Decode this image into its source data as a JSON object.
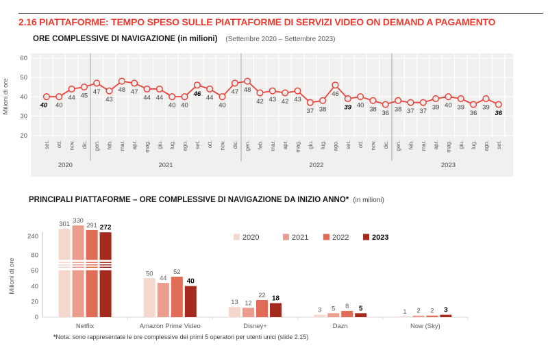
{
  "page": {
    "title": "2.16 PIATTAFORME: TEMPO SPESO SULLE PIATTAFORME DI SERVIZI VIDEO ON DEMAND A PAGAMENTO",
    "title_color": "#ed3a2d",
    "footnote_marker": "*",
    "footnote_text": "Nota: sono rappresentate le ore complessive dei primi 5 operatori per utenti unici (slide 2.15)"
  },
  "chart_data": [
    {
      "type": "line",
      "title": "ORE COMPLESSIVE DI NAVIGAZIONE (in milioni)",
      "period": "(Settembre 2020 – Settembre 2023)",
      "ylabel": "Milioni di ore",
      "ylim": [
        20,
        60
      ],
      "yticks": [
        20,
        30,
        40,
        50,
        60
      ],
      "line_color": "#e8423a",
      "panel_color": "#f1f0ee",
      "grid_color": "#ffffff",
      "separator_color": "#a6a6a6",
      "label_color": "#3f3f3f",
      "bold_month": "set.",
      "years": [
        {
          "label": "2020",
          "months": [
            "set.",
            "ott.",
            "nov.",
            "dic."
          ],
          "values": [
            40,
            40,
            44,
            45
          ]
        },
        {
          "label": "2021",
          "months": [
            "gen.",
            "feb.",
            "mar.",
            "apr.",
            "mag.",
            "giu.",
            "lug.",
            "ago.",
            "set.",
            "ott.",
            "nov.",
            "dic."
          ],
          "values": [
            47,
            43,
            48,
            47,
            44,
            44,
            40,
            40,
            46,
            44,
            40,
            47
          ]
        },
        {
          "label": "2022",
          "months": [
            "gen.",
            "feb.",
            "mar.",
            "apr.",
            "mag.",
            "giu.",
            "lug.",
            "ago.",
            "set.",
            "ott.",
            "nov.",
            "dic."
          ],
          "values": [
            48,
            42,
            43,
            42,
            43,
            37,
            38,
            46,
            39,
            40,
            38,
            36
          ]
        },
        {
          "label": "2023",
          "months": [
            "gen.",
            "feb.",
            "mar.",
            "apr.",
            "mag.",
            "giu.",
            "lug.",
            "ago.",
            "set."
          ],
          "values": [
            38,
            37,
            37,
            39,
            40,
            39,
            36,
            39,
            36
          ]
        }
      ]
    },
    {
      "type": "bar",
      "title": "PRINCIPALI PIATTAFORME – ORE COMPLESSIVE DI NAVIGAZIONE DA INIZIO ANNO*",
      "title_suffix": "(in milioni)",
      "ylabel": "Milioni di ore",
      "yticks": [
        0,
        20,
        40,
        60,
        80,
        240
      ],
      "axis_break_between": [
        80,
        240
      ],
      "axis_color": "#bfbfbf",
      "baseline_color": "#d9d9d9",
      "tick_text_color": "#595959",
      "categories": [
        "Netflix",
        "Amazon Prime Video",
        "Disney+",
        "Dazn",
        "Now (Sky)"
      ],
      "series": [
        {
          "name": "2020",
          "color": "#f6d7cd",
          "values": [
            301,
            50,
            13,
            3,
            1
          ]
        },
        {
          "name": "2021",
          "color": "#eb9e8e",
          "values": [
            330,
            44,
            12,
            5,
            2
          ]
        },
        {
          "name": "2022",
          "color": "#e06b57",
          "values": [
            291,
            52,
            22,
            8,
            2
          ]
        },
        {
          "name": "2023",
          "color": "#a52a1e",
          "bold": true,
          "values": [
            272,
            40,
            18,
            5,
            3
          ]
        }
      ],
      "legend_position": "top-center"
    }
  ]
}
